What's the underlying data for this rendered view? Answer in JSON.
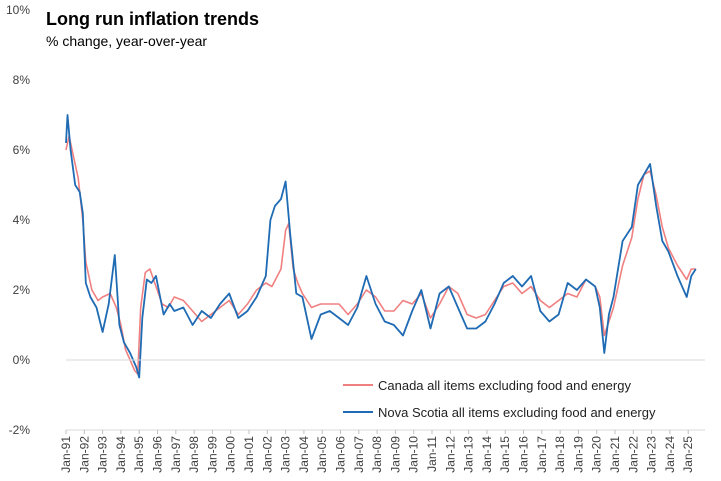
{
  "chart_data": {
    "type": "line",
    "title": "Long run inflation trends",
    "subtitle": "% change, year-over-year",
    "xlabel": "",
    "ylabel": "",
    "ylim": [
      -2,
      10
    ],
    "yticks": [
      -2,
      0,
      2,
      4,
      6,
      8,
      10
    ],
    "ytick_labels": [
      "-2%",
      "0%",
      "2%",
      "4%",
      "6%",
      "8%",
      "10%"
    ],
    "xlim": [
      "1991-01",
      "2025-12"
    ],
    "xtick_labels": [
      "Jan-91",
      "Jan-92",
      "Jan-93",
      "Jan-94",
      "Jan-95",
      "Jan-96",
      "Jan-97",
      "Jan-98",
      "Jan-99",
      "Jan-00",
      "Jan-01",
      "Jan-02",
      "Jan-03",
      "Jan-04",
      "Jan-05",
      "Jan-06",
      "Jan-07",
      "Jan-08",
      "Jan-09",
      "Jan-10",
      "Jan-11",
      "Jan-12",
      "Jan-13",
      "Jan-14",
      "Jan-15",
      "Jan-16",
      "Jan-17",
      "Jan-18",
      "Jan-19",
      "Jan-20",
      "Jan-21",
      "Jan-22",
      "Jan-23",
      "Jan-24",
      "Jan-25"
    ],
    "grid": false,
    "legend_position": "bottom-right",
    "series": [
      {
        "name": "Canada all items excluding food and energy",
        "color": "#f08080",
        "points": [
          [
            "1991-01",
            6.0
          ],
          [
            "1991-03",
            6.4
          ],
          [
            "1991-06",
            5.8
          ],
          [
            "1991-09",
            5.2
          ],
          [
            "1991-12",
            4.0
          ],
          [
            "1992-02",
            2.8
          ],
          [
            "1992-06",
            2.0
          ],
          [
            "1992-10",
            1.7
          ],
          [
            "1993-01",
            1.8
          ],
          [
            "1993-06",
            1.9
          ],
          [
            "1993-10",
            1.5
          ],
          [
            "1994-01",
            1.0
          ],
          [
            "1994-04",
            0.3
          ],
          [
            "1994-07",
            0.0
          ],
          [
            "1994-10",
            -0.3
          ],
          [
            "1994-12",
            -0.4
          ],
          [
            "1995-02",
            1.5
          ],
          [
            "1995-05",
            2.5
          ],
          [
            "1995-08",
            2.6
          ],
          [
            "1995-12",
            2.1
          ],
          [
            "1996-04",
            1.6
          ],
          [
            "1996-08",
            1.5
          ],
          [
            "1996-12",
            1.8
          ],
          [
            "1997-06",
            1.7
          ],
          [
            "1997-12",
            1.4
          ],
          [
            "1998-06",
            1.1
          ],
          [
            "1998-12",
            1.3
          ],
          [
            "1999-06",
            1.5
          ],
          [
            "1999-12",
            1.7
          ],
          [
            "2000-06",
            1.3
          ],
          [
            "2000-12",
            1.6
          ],
          [
            "2001-06",
            2.0
          ],
          [
            "2001-12",
            2.2
          ],
          [
            "2002-04",
            2.1
          ],
          [
            "2002-10",
            2.6
          ],
          [
            "2003-01",
            3.7
          ],
          [
            "2003-03",
            3.9
          ],
          [
            "2003-06",
            2.6
          ],
          [
            "2003-09",
            2.2
          ],
          [
            "2003-12",
            1.9
          ],
          [
            "2004-06",
            1.5
          ],
          [
            "2004-12",
            1.6
          ],
          [
            "2005-06",
            1.6
          ],
          [
            "2005-12",
            1.6
          ],
          [
            "2006-06",
            1.3
          ],
          [
            "2006-12",
            1.6
          ],
          [
            "2007-06",
            2.0
          ],
          [
            "2007-12",
            1.8
          ],
          [
            "2008-06",
            1.4
          ],
          [
            "2008-12",
            1.4
          ],
          [
            "2009-06",
            1.7
          ],
          [
            "2009-12",
            1.6
          ],
          [
            "2010-06",
            1.9
          ],
          [
            "2010-12",
            1.2
          ],
          [
            "2011-06",
            1.6
          ],
          [
            "2011-12",
            2.1
          ],
          [
            "2012-06",
            1.9
          ],
          [
            "2012-12",
            1.3
          ],
          [
            "2013-06",
            1.2
          ],
          [
            "2013-12",
            1.3
          ],
          [
            "2014-06",
            1.7
          ],
          [
            "2014-12",
            2.1
          ],
          [
            "2015-06",
            2.2
          ],
          [
            "2015-12",
            1.9
          ],
          [
            "2016-06",
            2.1
          ],
          [
            "2016-12",
            1.7
          ],
          [
            "2017-06",
            1.5
          ],
          [
            "2017-12",
            1.7
          ],
          [
            "2018-06",
            1.9
          ],
          [
            "2018-12",
            1.8
          ],
          [
            "2019-06",
            2.3
          ],
          [
            "2019-12",
            2.1
          ],
          [
            "2020-03",
            1.8
          ],
          [
            "2020-06",
            0.7
          ],
          [
            "2020-09",
            1.1
          ],
          [
            "2020-12",
            1.5
          ],
          [
            "2021-06",
            2.7
          ],
          [
            "2021-12",
            3.5
          ],
          [
            "2022-04",
            4.6
          ],
          [
            "2022-08",
            5.3
          ],
          [
            "2022-12",
            5.4
          ],
          [
            "2023-04",
            4.7
          ],
          [
            "2023-08",
            3.8
          ],
          [
            "2023-12",
            3.2
          ],
          [
            "2024-06",
            2.7
          ],
          [
            "2024-12",
            2.3
          ],
          [
            "2025-03",
            2.6
          ],
          [
            "2025-06",
            2.6
          ]
        ]
      },
      {
        "name": "Nova Scotia all items excluding food and energy",
        "color": "#1f6bb4",
        "points": [
          [
            "1991-01",
            6.2
          ],
          [
            "1991-02",
            7.0
          ],
          [
            "1991-04",
            6.0
          ],
          [
            "1991-07",
            5.0
          ],
          [
            "1991-10",
            4.8
          ],
          [
            "1991-12",
            4.2
          ],
          [
            "1992-02",
            2.2
          ],
          [
            "1992-05",
            1.8
          ],
          [
            "1992-09",
            1.5
          ],
          [
            "1993-01",
            0.8
          ],
          [
            "1993-05",
            1.6
          ],
          [
            "1993-09",
            3.0
          ],
          [
            "1993-12",
            1.0
          ],
          [
            "1994-03",
            0.5
          ],
          [
            "1994-07",
            0.2
          ],
          [
            "1994-11",
            -0.2
          ],
          [
            "1995-01",
            -0.5
          ],
          [
            "1995-03",
            1.2
          ],
          [
            "1995-06",
            2.3
          ],
          [
            "1995-09",
            2.2
          ],
          [
            "1995-12",
            2.4
          ],
          [
            "1996-05",
            1.3
          ],
          [
            "1996-09",
            1.6
          ],
          [
            "1996-12",
            1.4
          ],
          [
            "1997-06",
            1.5
          ],
          [
            "1997-12",
            1.0
          ],
          [
            "1998-06",
            1.4
          ],
          [
            "1998-12",
            1.2
          ],
          [
            "1999-06",
            1.6
          ],
          [
            "1999-12",
            1.9
          ],
          [
            "2000-06",
            1.2
          ],
          [
            "2000-12",
            1.4
          ],
          [
            "2001-06",
            1.8
          ],
          [
            "2001-12",
            2.4
          ],
          [
            "2002-03",
            4.0
          ],
          [
            "2002-06",
            4.4
          ],
          [
            "2002-10",
            4.6
          ],
          [
            "2003-01",
            5.1
          ],
          [
            "2003-04",
            3.6
          ],
          [
            "2003-08",
            1.9
          ],
          [
            "2003-12",
            1.8
          ],
          [
            "2004-06",
            0.6
          ],
          [
            "2004-12",
            1.3
          ],
          [
            "2005-06",
            1.4
          ],
          [
            "2005-12",
            1.2
          ],
          [
            "2006-06",
            1.0
          ],
          [
            "2006-12",
            1.5
          ],
          [
            "2007-06",
            2.4
          ],
          [
            "2007-12",
            1.6
          ],
          [
            "2008-06",
            1.1
          ],
          [
            "2008-12",
            1.0
          ],
          [
            "2009-06",
            0.7
          ],
          [
            "2009-12",
            1.4
          ],
          [
            "2010-06",
            2.0
          ],
          [
            "2010-12",
            0.9
          ],
          [
            "2011-06",
            1.9
          ],
          [
            "2011-12",
            2.1
          ],
          [
            "2012-06",
            1.5
          ],
          [
            "2012-12",
            0.9
          ],
          [
            "2013-06",
            0.9
          ],
          [
            "2013-12",
            1.1
          ],
          [
            "2014-06",
            1.6
          ],
          [
            "2014-12",
            2.2
          ],
          [
            "2015-06",
            2.4
          ],
          [
            "2015-12",
            2.1
          ],
          [
            "2016-06",
            2.4
          ],
          [
            "2016-12",
            1.4
          ],
          [
            "2017-06",
            1.1
          ],
          [
            "2017-12",
            1.3
          ],
          [
            "2018-06",
            2.2
          ],
          [
            "2018-12",
            2.0
          ],
          [
            "2019-06",
            2.3
          ],
          [
            "2019-12",
            2.1
          ],
          [
            "2020-03",
            1.5
          ],
          [
            "2020-06",
            0.2
          ],
          [
            "2020-09",
            1.3
          ],
          [
            "2020-12",
            1.8
          ],
          [
            "2021-06",
            3.4
          ],
          [
            "2021-12",
            3.8
          ],
          [
            "2022-04",
            5.0
          ],
          [
            "2022-08",
            5.3
          ],
          [
            "2022-12",
            5.6
          ],
          [
            "2023-04",
            4.4
          ],
          [
            "2023-08",
            3.4
          ],
          [
            "2023-12",
            3.1
          ],
          [
            "2024-06",
            2.4
          ],
          [
            "2024-12",
            1.8
          ],
          [
            "2025-03",
            2.4
          ],
          [
            "2025-06",
            2.6
          ]
        ]
      }
    ]
  }
}
